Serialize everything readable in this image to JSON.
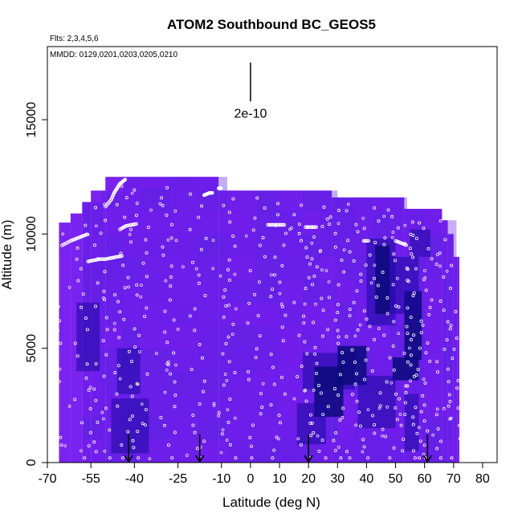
{
  "chart_data": {
    "type": "heatmap",
    "title": "ATOM2 Southbound BC_GEOS5",
    "subtitle_flights": "Flts: 2,3,4,5,6",
    "subtitle_dates": "MMDD: 0129,0201,0203,0205,0210",
    "xlabel": "Latitude (deg N)",
    "ylabel": "Altitude (m)",
    "xlim": [
      -70,
      85
    ],
    "ylim": [
      0,
      18200
    ],
    "x_ticks": [
      -70,
      -55,
      -40,
      -25,
      -10,
      0,
      10,
      20,
      30,
      40,
      50,
      60,
      70,
      80
    ],
    "x_tick_labels": [
      "-70",
      "-55",
      "-40",
      "-25",
      "-10",
      "0",
      "10",
      "20",
      "30",
      "40",
      "50",
      "60",
      "70",
      "80"
    ],
    "y_ticks": [
      0,
      5000,
      10000,
      15000
    ],
    "y_tick_labels": [
      "0",
      "5000",
      "10000",
      "15000"
    ],
    "scale_bar_label": "2e-10",
    "scale_bar": {
      "x": 0,
      "y_start": 15800,
      "y_end": 17500
    },
    "colors": {
      "base": "#7a22f0",
      "dark": "#1c0aa0",
      "darkest": "#0a0a7a",
      "flight_points": "#ffffff",
      "arrows": "#000000"
    },
    "region_top_profile": [
      {
        "from": -66,
        "to": -62,
        "top": 10500
      },
      {
        "from": -62,
        "to": -58,
        "top": 10900
      },
      {
        "from": -58,
        "to": -55,
        "top": 11400
      },
      {
        "from": -55,
        "to": -50,
        "top": 11900
      },
      {
        "from": -50,
        "to": -11,
        "top": 12500
      },
      {
        "from": -11,
        "to": 28,
        "top": 11900
      },
      {
        "from": 28,
        "to": 53,
        "top": 11600
      },
      {
        "from": 53,
        "to": 66,
        "top": 11100
      },
      {
        "from": 66,
        "to": 68,
        "top": 10600
      },
      {
        "from": 68,
        "to": 70,
        "top": 10000
      },
      {
        "from": 70,
        "to": 72,
        "top": 9000
      }
    ],
    "high_concentration_patches": [
      {
        "x0": -48,
        "x1": -35,
        "y0": 400,
        "y1": 2800,
        "level": "dark"
      },
      {
        "x0": -46,
        "x1": -38,
        "y0": 3000,
        "y1": 5000,
        "level": "dark"
      },
      {
        "x0": 18,
        "x1": 36,
        "y0": 3200,
        "y1": 4800,
        "level": "dark"
      },
      {
        "x0": 22,
        "x1": 32,
        "y0": 2000,
        "y1": 4200,
        "level": "darkest"
      },
      {
        "x0": 30,
        "x1": 40,
        "y0": 3400,
        "y1": 5100,
        "level": "darkest"
      },
      {
        "x0": 16,
        "x1": 26,
        "y0": 800,
        "y1": 2600,
        "level": "dark"
      },
      {
        "x0": 40,
        "x1": 50,
        "y0": 6000,
        "y1": 9800,
        "level": "dark"
      },
      {
        "x0": 43,
        "x1": 48,
        "y0": 6500,
        "y1": 9500,
        "level": "darkest"
      },
      {
        "x0": 49,
        "x1": 58,
        "y0": 3600,
        "y1": 4600,
        "level": "darkest"
      },
      {
        "x0": 53,
        "x1": 59,
        "y0": 4500,
        "y1": 7500,
        "level": "darkest"
      },
      {
        "x0": 48,
        "x1": 58,
        "y0": 6500,
        "y1": 9000,
        "level": "dark"
      },
      {
        "x0": 53,
        "x1": 58,
        "y0": 500,
        "y1": 3000,
        "level": "dark"
      },
      {
        "x0": 37,
        "x1": 50,
        "y0": 1500,
        "y1": 3800,
        "level": "dark"
      },
      {
        "x0": -60,
        "x1": -52,
        "y0": 4000,
        "y1": 7000,
        "level": "dark"
      },
      {
        "x0": 55,
        "x1": 62,
        "y0": 9000,
        "y1": 10200,
        "level": "dark"
      }
    ],
    "flight_tracks": [
      {
        "x": [
          -65,
          -62,
          -60,
          -58,
          -56
        ],
        "y": [
          9500,
          9700,
          9800,
          9900,
          10000
        ]
      },
      {
        "x": [
          -56,
          -54,
          -52,
          -50,
          -48,
          -46,
          -44
        ],
        "y": [
          8800,
          8850,
          8900,
          8900,
          8950,
          9000,
          9050
        ]
      },
      {
        "x": [
          -50,
          -48,
          -47,
          -46,
          -45,
          -44,
          -43
        ],
        "y": [
          11200,
          11500,
          11800,
          12000,
          12200,
          12300,
          12400
        ]
      },
      {
        "x": [
          -45,
          -43,
          -41,
          -39
        ],
        "y": [
          10200,
          10350,
          10400,
          10450
        ]
      },
      {
        "x": [
          -16,
          -15,
          -14,
          -13
        ],
        "y": [
          11700,
          11750,
          11800,
          11800
        ]
      },
      {
        "x": [
          -11,
          -10
        ],
        "y": [
          12000,
          12000
        ]
      },
      {
        "x": [
          6,
          8,
          10,
          12
        ],
        "y": [
          10400,
          10400,
          10400,
          10400
        ]
      },
      {
        "x": [
          19,
          21,
          23
        ],
        "y": [
          10300,
          10300,
          10300
        ]
      },
      {
        "x": [
          39,
          41
        ],
        "y": [
          9700,
          9700
        ]
      },
      {
        "x": [
          50,
          52,
          54
        ],
        "y": [
          9700,
          9600,
          9500
        ]
      }
    ],
    "profile_columns": [
      -68,
      -58,
      -51,
      -44,
      -38,
      -28,
      -18,
      -8,
      2,
      10,
      18,
      24,
      30,
      36,
      42,
      48,
      54,
      56,
      60,
      66,
      71
    ],
    "arrow_markers_latitude": [
      -42,
      -17.5,
      20,
      61
    ]
  }
}
